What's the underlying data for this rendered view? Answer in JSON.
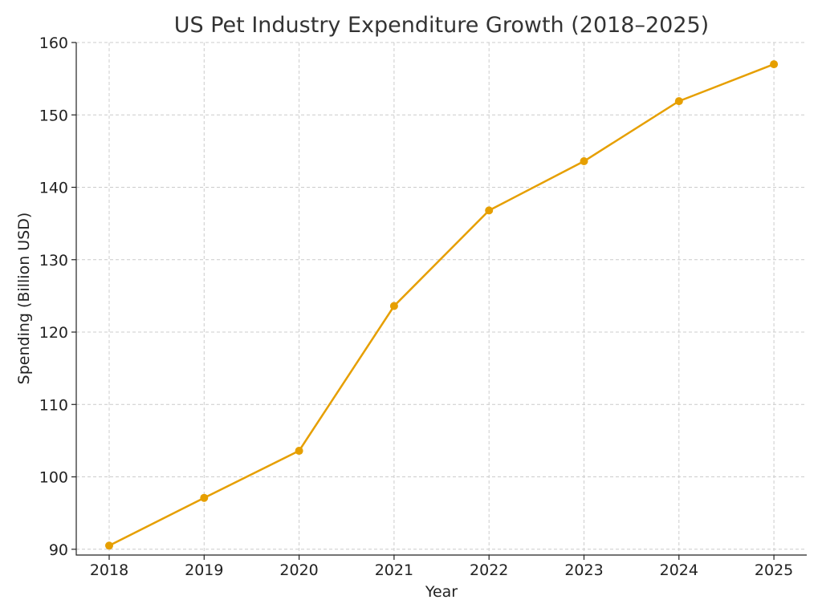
{
  "chart_data": {
    "type": "line",
    "title": "US Pet Industry Expenditure Growth (2018–2025)",
    "xlabel": "Year",
    "ylabel": "Spending (Billion USD)",
    "categories": [
      "2018",
      "2019",
      "2020",
      "2021",
      "2022",
      "2023",
      "2024",
      "2025"
    ],
    "series": [
      {
        "values": [
          90.5,
          97.1,
          103.6,
          123.6,
          136.8,
          143.6,
          151.9,
          157.0
        ],
        "color": "#e69f00"
      }
    ],
    "y_ticks": [
      90,
      100,
      110,
      120,
      130,
      140,
      150,
      160
    ],
    "ylim": [
      89.2,
      160
    ],
    "grid": true,
    "legend": "none"
  }
}
